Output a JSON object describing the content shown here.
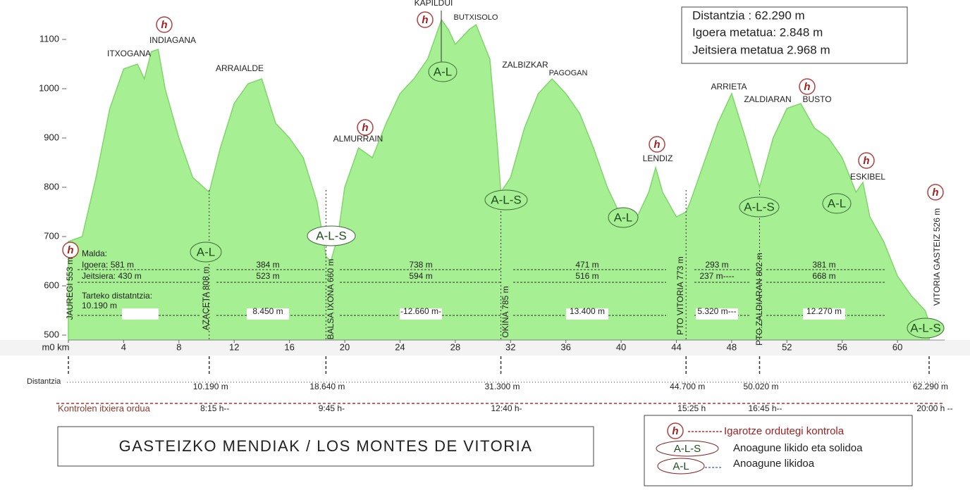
{
  "chart_data": {
    "type": "area",
    "title": "GASTEIZKO MENDIAK / LOS MONTES DE VITORIA",
    "color": "#a6ef92",
    "xlim": [
      0,
      62.29
    ],
    "ylim": [
      490,
      1160
    ],
    "yticks": [
      500,
      600,
      700,
      800,
      900,
      1000,
      1100
    ],
    "xticks": [
      {
        "value": 0,
        "label": "m0 km"
      },
      4,
      8,
      12,
      16,
      20,
      24,
      28,
      32,
      36,
      40,
      44,
      48,
      52,
      56,
      60
    ],
    "profile": {
      "x": [
        0,
        1,
        2,
        3,
        4,
        5,
        5.5,
        6,
        6.5,
        7,
        8,
        9,
        10.19,
        11,
        12,
        13,
        14,
        15,
        16,
        17,
        18,
        18.64,
        19,
        19.5,
        20,
        21,
        22,
        23,
        24,
        25,
        26,
        27,
        27.5,
        28,
        29,
        29.5,
        30.5,
        31,
        31.3,
        32,
        33,
        34,
        35,
        36,
        37,
        38,
        39,
        40,
        41,
        42,
        42.5,
        43,
        44,
        44.7,
        45,
        46,
        47,
        48,
        49,
        50.02,
        51,
        52,
        53,
        54,
        55,
        56,
        57,
        57.5,
        58,
        59,
        60,
        61,
        62,
        62.29
      ],
      "y": [
        690,
        700,
        820,
        960,
        1040,
        1050,
        1020,
        1075,
        1080,
        1000,
        900,
        820,
        790,
        880,
        970,
        1010,
        1020,
        930,
        900,
        860,
        770,
        660,
        650,
        700,
        800,
        880,
        860,
        930,
        990,
        1020,
        1060,
        1140,
        1120,
        1090,
        1120,
        1130,
        1060,
        900,
        790,
        820,
        920,
        990,
        1020,
        990,
        950,
        880,
        800,
        740,
        730,
        790,
        840,
        790,
        740,
        750,
        770,
        850,
        930,
        990,
        900,
        800,
        900,
        960,
        970,
        920,
        900,
        860,
        790,
        810,
        740,
        690,
        620,
        580,
        550,
        526
      ]
    },
    "peaks": [
      "ITXOGANA",
      "INDIAGANA",
      "ARRAIALDE",
      "ALMURRAIN",
      "KAPILDUI",
      "BUTXISOLO",
      "ZALBIZKAR",
      "PAGOGAN",
      "LENDIZ",
      "ARRIETA",
      "ZALDIARAN",
      "BUSTO",
      "ESKIBEL"
    ],
    "controls": [
      "JAUREGI 553 m",
      "AZACETA 808 m",
      "BALSA IXONA 660 m",
      "OKINA 785 m",
      "PTO VITORIA 773 m",
      "PTO.ZALDIARAN 802 m",
      "VITORIA GASTEIZ 526 m"
    ],
    "markers": {
      "h": "h",
      "als": "A-L-S",
      "al": "A-L"
    },
    "first_segment": [
      "Malda:",
      "Igoera: 581 m",
      "Jeitsiera: 430 m",
      "Tarteko distatntzia:",
      "10.190 m"
    ],
    "segments": [
      [
        "384 m",
        "523 m",
        "8.450 m"
      ],
      [
        "738 m",
        "594 m",
        "-12.660 m-"
      ],
      [
        "471 m",
        "516 m",
        "13.400 m"
      ],
      [
        "293 m",
        "237 m----",
        "5.320 m---"
      ],
      [
        "381 m",
        "668 m",
        "12.270 m"
      ]
    ],
    "distance_label": "Distantzia",
    "stations": [
      {
        "value": 10.19,
        "label": "10.190 m"
      },
      {
        "value": 18.64,
        "label": "18.640 m"
      },
      {
        "value": 31.3,
        "label": "31.300 m"
      },
      {
        "value": 44.7,
        "label": "44.700 m"
      },
      {
        "value": 50.02,
        "label": "50.020 m"
      },
      {
        "value": 62.29,
        "label": "62.290 m"
      }
    ],
    "times_label": "Kontrolen itxiera ordua",
    "times": [
      "8:15 h--",
      "9:45 h-",
      "12:40 h-",
      "15:25 h",
      "16:45 h--",
      "20:00 h --"
    ],
    "info": [
      "Distantzia : 62.290 m",
      "Igoera metatua: 2.848 m",
      "Jeitsiera metatua 2.968 m"
    ],
    "legend": [
      "Igarotze ordutegi kontrola",
      "Anoagune likido eta solidoa",
      "Anoagune likidoa"
    ]
  }
}
